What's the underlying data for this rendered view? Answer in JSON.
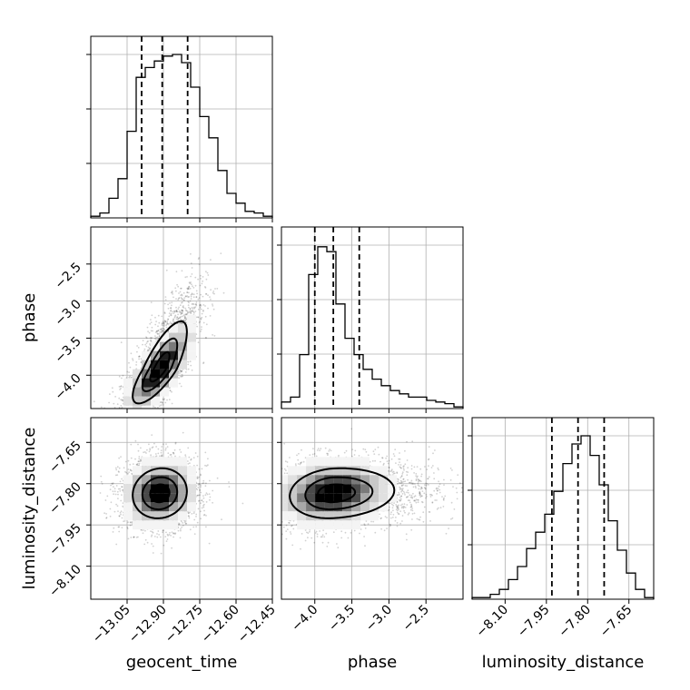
{
  "chart_data": {
    "type": "corner",
    "parameters": [
      "geocent_time",
      "phase",
      "luminosity_distance"
    ],
    "axis_labels": {
      "x": [
        "geocent_time",
        "phase",
        "luminosity_distance"
      ],
      "y": [
        "phase",
        "luminosity_distance"
      ]
    },
    "grid": true,
    "ranges": {
      "geocent_time": [
        -13.2,
        -12.45
      ],
      "phase": [
        -4.45,
        -2.0
      ],
      "luminosity_distance": [
        -8.22,
        -7.56
      ]
    },
    "ticks": {
      "geocent_time": [
        -13.05,
        -12.9,
        -12.75,
        -12.6,
        -12.45
      ],
      "phase": [
        -4.0,
        -3.5,
        -3.0,
        -2.5
      ],
      "luminosity_distance": [
        -8.1,
        -7.95,
        -7.8,
        -7.65
      ]
    },
    "tick_labels": {
      "geocent_time": [
        "−13.05",
        "−12.90",
        "−12.75",
        "−12.60",
        "−12.45"
      ],
      "phase": [
        "−4.0",
        "−3.5",
        "−3.0",
        "−2.5"
      ],
      "luminosity_distance": [
        "−8.10",
        "−7.95",
        "−7.80",
        "−7.65"
      ]
    },
    "histograms": [
      {
        "parameter": "geocent_time",
        "bin_start": -13.2,
        "bin_width": 0.0375,
        "counts": [
          0.01,
          0.03,
          0.12,
          0.24,
          0.53,
          0.86,
          0.92,
          0.96,
          0.99,
          1.0,
          0.95,
          0.8,
          0.62,
          0.49,
          0.29,
          0.15,
          0.09,
          0.04,
          0.03,
          0.01
        ],
        "quantiles": [
          -12.99,
          -12.905,
          -12.8
        ]
      },
      {
        "parameter": "phase",
        "bin_start": -4.45,
        "bin_width": 0.1225,
        "counts": [
          0.04,
          0.07,
          0.33,
          0.82,
          0.99,
          0.96,
          0.64,
          0.43,
          0.33,
          0.24,
          0.18,
          0.14,
          0.11,
          0.09,
          0.07,
          0.07,
          0.05,
          0.04,
          0.03,
          0.01
        ],
        "quantiles": [
          -4.0,
          -3.75,
          -3.4
        ]
      },
      {
        "parameter": "luminosity_distance",
        "bin_start": -8.22,
        "bin_width": 0.033,
        "counts": [
          0.01,
          0.01,
          0.03,
          0.06,
          0.12,
          0.2,
          0.31,
          0.41,
          0.52,
          0.66,
          0.83,
          0.95,
          1.0,
          0.88,
          0.7,
          0.48,
          0.3,
          0.16,
          0.06,
          0.01
        ],
        "quantiles": [
          -7.93,
          -7.835,
          -7.74
        ]
      }
    ],
    "scatter_2d": [
      {
        "x": "geocent_time",
        "y": "phase",
        "center": [
          -12.915,
          -3.92
        ],
        "sigma": [
          0.08,
          0.33
        ],
        "correlation": 0.78,
        "samples": 2600
      },
      {
        "x": "geocent_time",
        "y": "luminosity_distance",
        "center": [
          -12.915,
          -7.835
        ],
        "sigma": [
          0.08,
          0.065
        ],
        "correlation": 0.08,
        "samples": 2600
      },
      {
        "x": "phase",
        "y": "luminosity_distance",
        "center": [
          -3.75,
          -7.835
        ],
        "sigma": [
          0.42,
          0.065
        ],
        "correlation": 0.12,
        "samples": 2600
      }
    ],
    "contour_levels": [
      0.5,
      0.9,
      1.4
    ]
  }
}
